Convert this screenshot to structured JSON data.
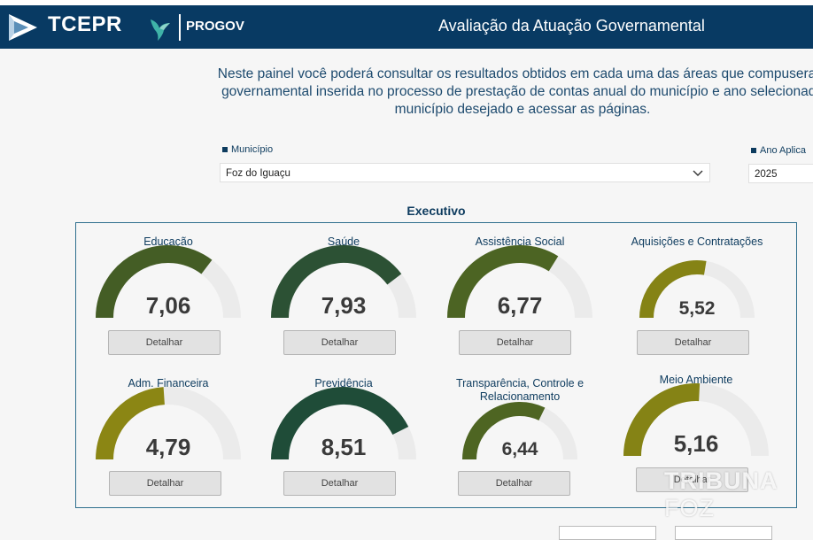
{
  "header": {
    "brand": "TCEPR",
    "product": "PROGOV",
    "title": "Avaliação da Atuação Governamental"
  },
  "intro": {
    "line1": "Neste painel você poderá consultar os resultados obtidos em cada uma das áreas que compuseram",
    "line2": "governamental inserida no processo de prestação de contas anual do município e ano selecionado",
    "line3": "município desejado e acessar as páginas."
  },
  "filters": {
    "municipio_label": "Município",
    "municipio_value": "Foz do Iguaçu",
    "ano_label": "Ano Aplica",
    "ano_value": "2025"
  },
  "section_title": "Executivo",
  "button_label": "Detalhar",
  "colors": {
    "dark_green": "#2a4f31",
    "olive_green": "#4c6423",
    "olive_yellow": "#858315",
    "track": "#ebebeb",
    "header_bg": "#083a63"
  },
  "gauges": [
    {
      "title": "Educação",
      "value": "7,06",
      "score": 7.06,
      "color": "#445d25"
    },
    {
      "title": "Saúde",
      "value": "7,93",
      "score": 7.93,
      "color": "#2c5134"
    },
    {
      "title": "Assistência Social",
      "value": "6,77",
      "score": 6.77,
      "color": "#4c6423"
    },
    {
      "title": "Aquisições e Contratações",
      "value": "5,52",
      "score": 5.52,
      "color": "#858315"
    },
    {
      "title": "Adm. Financeira",
      "value": "4,79",
      "score": 4.79,
      "color": "#8b8614"
    },
    {
      "title": "Previdência",
      "value": "8,51",
      "score": 8.51,
      "color": "#1f4c38"
    },
    {
      "title": "Transparência, Controle e Relacionamento",
      "value": "6,44",
      "score": 6.44,
      "color": "#4e6522"
    },
    {
      "title": "Meio Ambiente",
      "value": "5,16",
      "score": 5.16,
      "color": "#858315"
    }
  ],
  "watermark": {
    "part1": "TRIBUNA",
    "part2": "FOZ"
  }
}
